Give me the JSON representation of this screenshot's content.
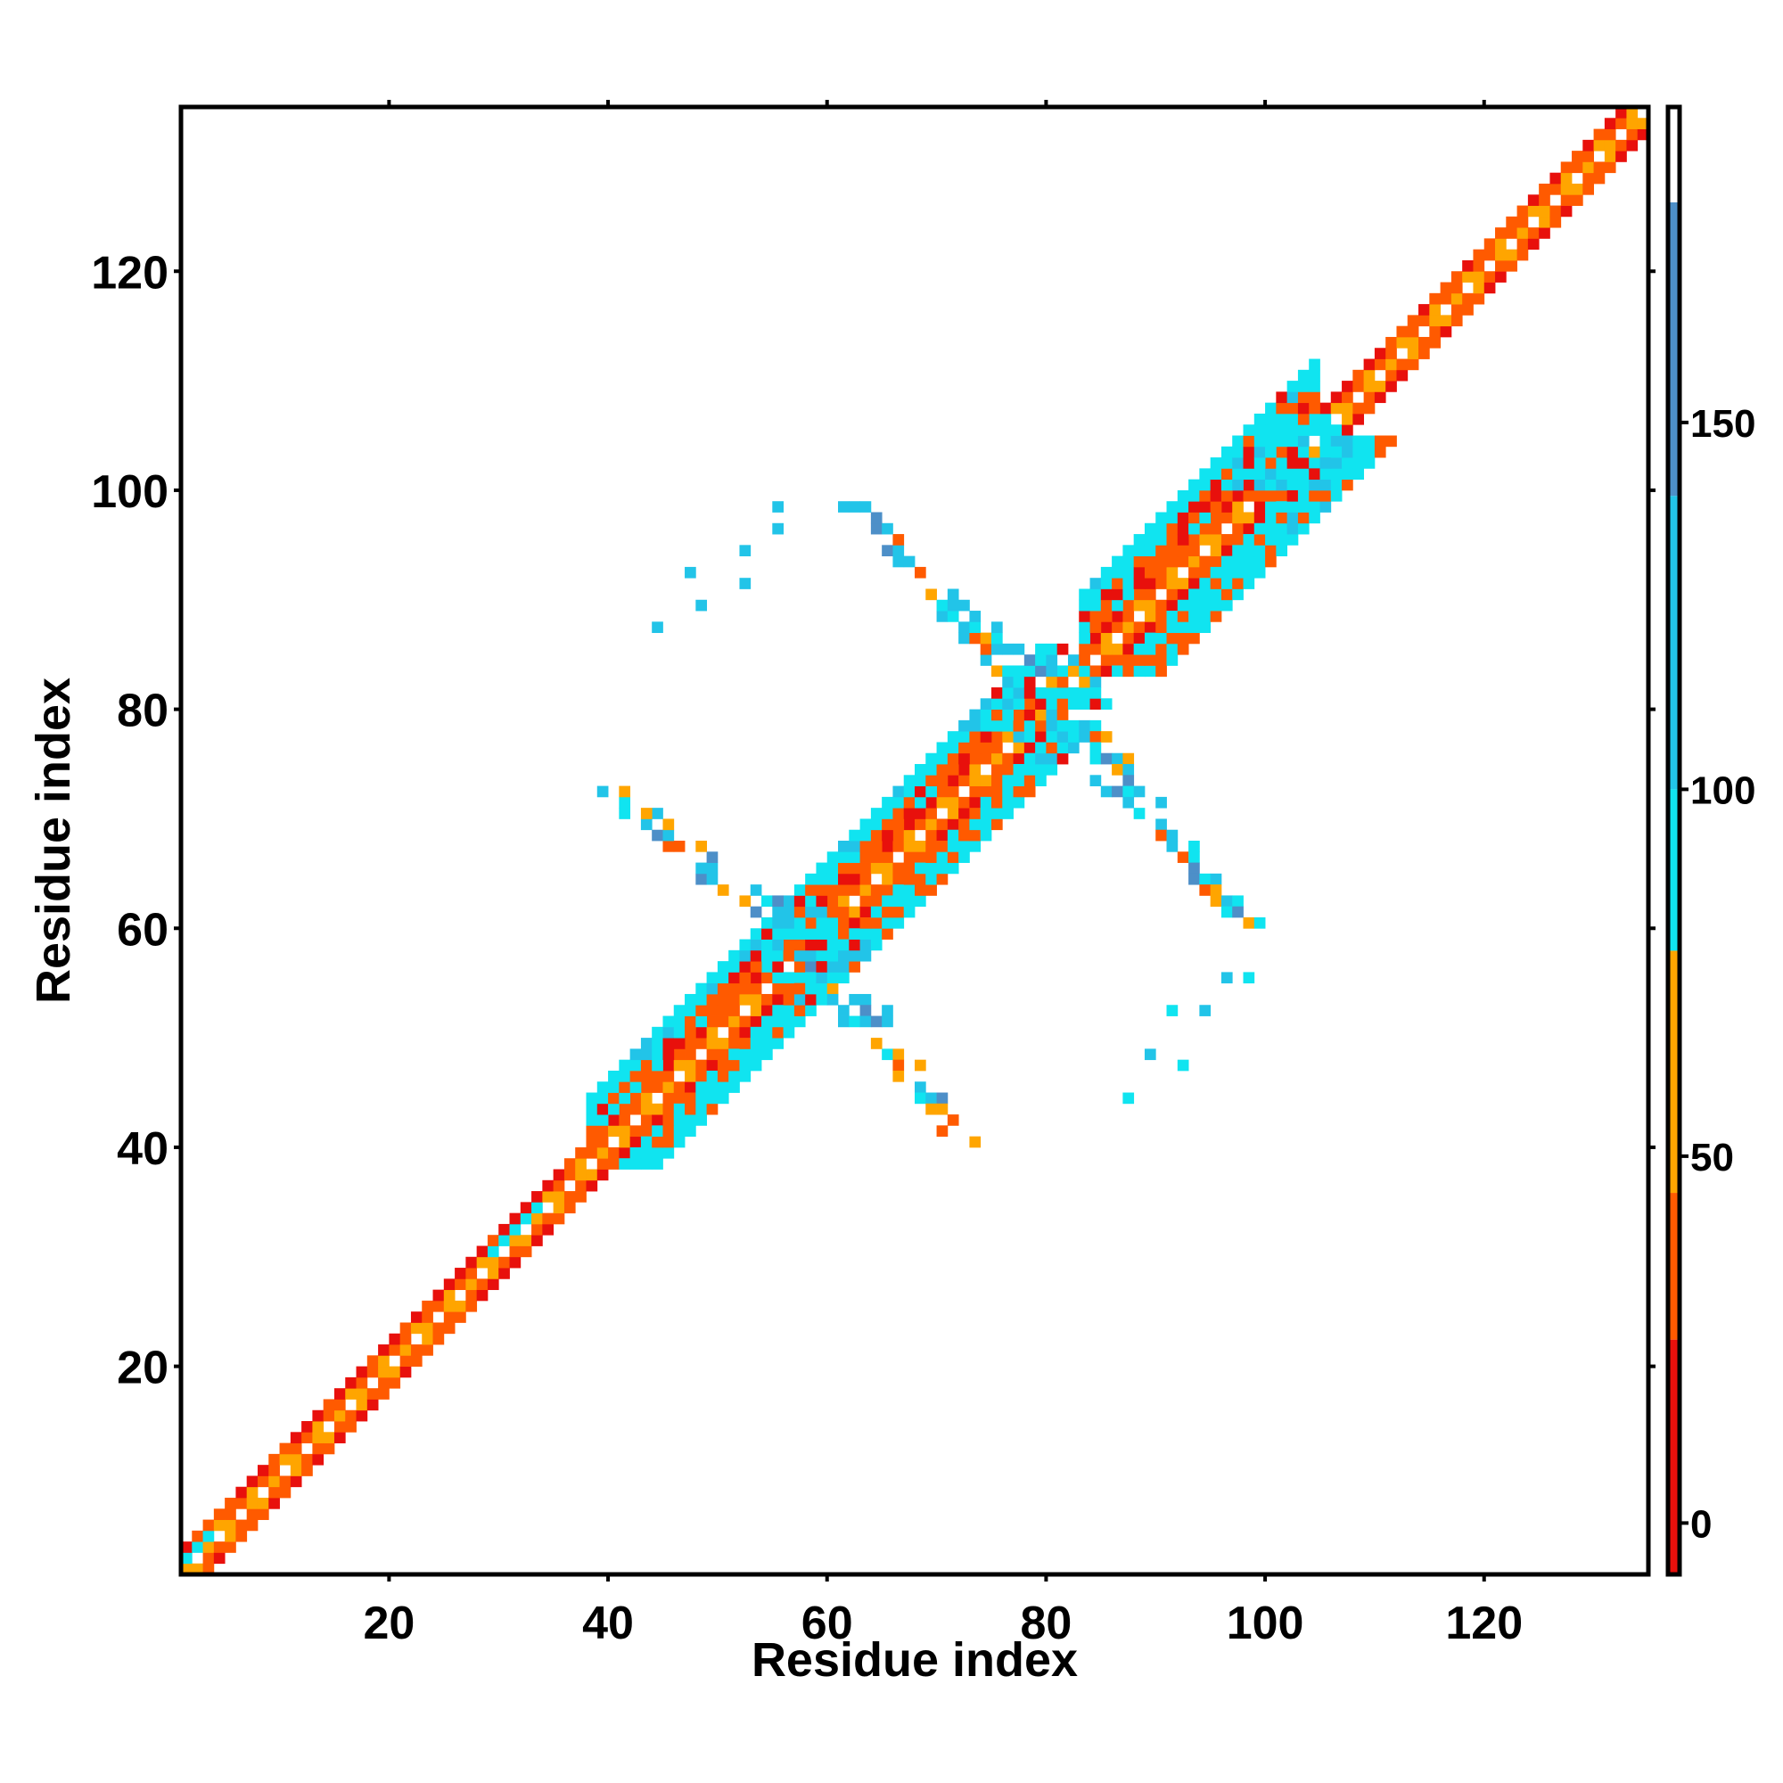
{
  "chart_data": {
    "type": "heatmap",
    "title": "",
    "xlabel": "Residue index",
    "ylabel": "Residue index",
    "xlim": [
      1,
      134
    ],
    "ylim": [
      1,
      134
    ],
    "x_ticks": [
      20,
      40,
      60,
      80,
      100,
      120
    ],
    "y_ticks": [
      20,
      40,
      60,
      80,
      100,
      120
    ],
    "colorbar": {
      "ticks": [
        0,
        50,
        100,
        150
      ],
      "range": [
        -7,
        193
      ],
      "segments": [
        {
          "from": -7,
          "to": 25,
          "color": "#e8100c"
        },
        {
          "from": 25,
          "to": 45,
          "color": "#ff5a00"
        },
        {
          "from": 45,
          "to": 78,
          "color": "#ffa500"
        },
        {
          "from": 78,
          "to": 100,
          "color": "#10e4f0"
        },
        {
          "from": 100,
          "to": 140,
          "color": "#22c4e8"
        },
        {
          "from": 140,
          "to": 180,
          "color": "#4d8fc8"
        },
        {
          "from": 180,
          "to": 193,
          "color": "#ffffff"
        }
      ]
    },
    "grid": false,
    "description_of_values": "Residue-pair angle map; colored cells appear only within ~4-10 residues of the diagonal plus two cross-strand contact regions; white = no contact",
    "features": {
      "diagonal_band": {
        "start": 1,
        "end": 134,
        "half_width": 2
      },
      "wide_band_segments": [
        {
          "from": 38,
          "to": 62,
          "extra_width": 4
        },
        {
          "from": 62,
          "to": 78,
          "extra_width": 4
        },
        {
          "from": 83,
          "to": 104,
          "extra_width": 5
        }
      ],
      "junction_blocks": [
        {
          "center": [
            58,
            58
          ],
          "radius": 3
        },
        {
          "center": [
            80,
            80
          ],
          "radius": 3
        },
        {
          "center": [
            102,
            102
          ],
          "radius": 4
        }
      ],
      "antiparallel_arms": [
        {
          "anchor": [
            58,
            58
          ],
          "to": [
            72,
            40
          ],
          "color_mix": "cyan-orange"
        },
        {
          "anchor": [
            58,
            58
          ],
          "to": [
            40,
            72
          ],
          "color_mix": "cyan-orange"
        },
        {
          "anchor": [
            80,
            80
          ],
          "to": [
            98,
            60
          ],
          "color_mix": "cyan-orange"
        },
        {
          "anchor": [
            80,
            80
          ],
          "to": [
            62,
            98
          ],
          "color_mix": "cyan-orange"
        }
      ],
      "scattered_contacts": [
        [
          87,
          44
        ],
        [
          89,
          48
        ],
        [
          92,
          47
        ],
        [
          91,
          52
        ],
        [
          94,
          52
        ],
        [
          96,
          55
        ],
        [
          98,
          55
        ],
        [
          44,
          87
        ],
        [
          48,
          89
        ],
        [
          47,
          92
        ],
        [
          52,
          91
        ],
        [
          52,
          94
        ],
        [
          55,
          96
        ],
        [
          55,
          98
        ]
      ]
    }
  }
}
